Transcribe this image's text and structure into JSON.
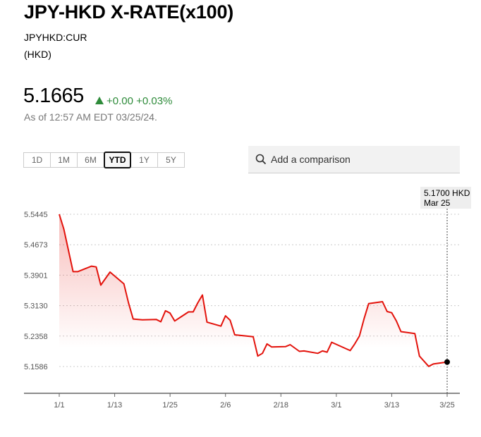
{
  "header": {
    "title": "JPY-HKD X-RATE(x100)",
    "ticker": "JPYHKD:CUR",
    "currency": "(HKD)"
  },
  "quote": {
    "price": "5.1665",
    "change": "+0.00",
    "change_pct": "+0.03%",
    "as_of": "As of 12:57 AM EDT 03/25/24.",
    "up_color": "#2e8b3a"
  },
  "ranges": {
    "items": [
      "1D",
      "1M",
      "6M",
      "YTD",
      "1Y",
      "5Y"
    ],
    "selected": "YTD"
  },
  "search": {
    "placeholder": "Add a comparison",
    "icon": "search-icon"
  },
  "tooltip": {
    "value": "5.1700 HKD",
    "date": "Mar 25"
  },
  "chart_data": {
    "type": "area",
    "line_color": "#e3120b",
    "grid": "horizontal-dotted",
    "xlim": [
      "2024-01-01",
      "2024-03-25"
    ],
    "ylim": [
      5.1586,
      5.5445
    ],
    "x_ticks": [
      {
        "date": "2024-01-01",
        "label": "1/1"
      },
      {
        "date": "2024-01-13",
        "label": "1/13"
      },
      {
        "date": "2024-01-25",
        "label": "1/25"
      },
      {
        "date": "2024-02-06",
        "label": "2/6"
      },
      {
        "date": "2024-02-18",
        "label": "2/18"
      },
      {
        "date": "2024-03-01",
        "label": "3/1"
      },
      {
        "date": "2024-03-13",
        "label": "3/13"
      },
      {
        "date": "2024-03-25",
        "label": "3/25"
      }
    ],
    "y_ticks": [
      "5.5445",
      "5.4673",
      "5.3901",
      "5.3130",
      "5.2358",
      "5.1586"
    ],
    "series": [
      {
        "points": [
          [
            "2024-01-01",
            5.5445
          ],
          [
            "2024-01-02",
            5.507
          ],
          [
            "2024-01-04",
            5.399
          ],
          [
            "2024-01-05",
            5.399
          ],
          [
            "2024-01-08",
            5.413
          ],
          [
            "2024-01-09",
            5.411
          ],
          [
            "2024-01-10",
            5.365
          ],
          [
            "2024-01-12",
            5.398
          ],
          [
            "2024-01-15",
            5.368
          ],
          [
            "2024-01-16",
            5.32
          ],
          [
            "2024-01-17",
            5.279
          ],
          [
            "2024-01-19",
            5.277
          ],
          [
            "2024-01-22",
            5.278
          ],
          [
            "2024-01-23",
            5.272
          ],
          [
            "2024-01-24",
            5.3
          ],
          [
            "2024-01-25",
            5.294
          ],
          [
            "2024-01-26",
            5.274
          ],
          [
            "2024-01-29",
            5.297
          ],
          [
            "2024-01-30",
            5.297
          ],
          [
            "2024-01-31",
            5.32
          ],
          [
            "2024-02-01",
            5.34
          ],
          [
            "2024-02-02",
            5.271
          ],
          [
            "2024-02-05",
            5.261
          ],
          [
            "2024-02-06",
            5.287
          ],
          [
            "2024-02-07",
            5.276
          ],
          [
            "2024-02-08",
            5.239
          ],
          [
            "2024-02-12",
            5.234
          ],
          [
            "2024-02-13",
            5.185
          ],
          [
            "2024-02-14",
            5.192
          ],
          [
            "2024-02-15",
            5.216
          ],
          [
            "2024-02-16",
            5.208
          ],
          [
            "2024-02-19",
            5.209
          ],
          [
            "2024-02-20",
            5.214
          ],
          [
            "2024-02-22",
            5.197
          ],
          [
            "2024-02-23",
            5.198
          ],
          [
            "2024-02-26",
            5.192
          ],
          [
            "2024-02-27",
            5.198
          ],
          [
            "2024-02-28",
            5.195
          ],
          [
            "2024-02-29",
            5.22
          ],
          [
            "2024-03-04",
            5.199
          ],
          [
            "2024-03-05",
            5.216
          ],
          [
            "2024-03-06",
            5.236
          ],
          [
            "2024-03-07",
            5.279
          ],
          [
            "2024-03-08",
            5.318
          ],
          [
            "2024-03-11",
            5.323
          ],
          [
            "2024-03-12",
            5.298
          ],
          [
            "2024-03-13",
            5.295
          ],
          [
            "2024-03-14",
            5.274
          ],
          [
            "2024-03-15",
            5.247
          ],
          [
            "2024-03-18",
            5.242
          ],
          [
            "2024-03-19",
            5.185
          ],
          [
            "2024-03-21",
            5.159
          ],
          [
            "2024-03-22",
            5.165
          ],
          [
            "2024-03-25",
            5.17
          ]
        ]
      }
    ]
  }
}
